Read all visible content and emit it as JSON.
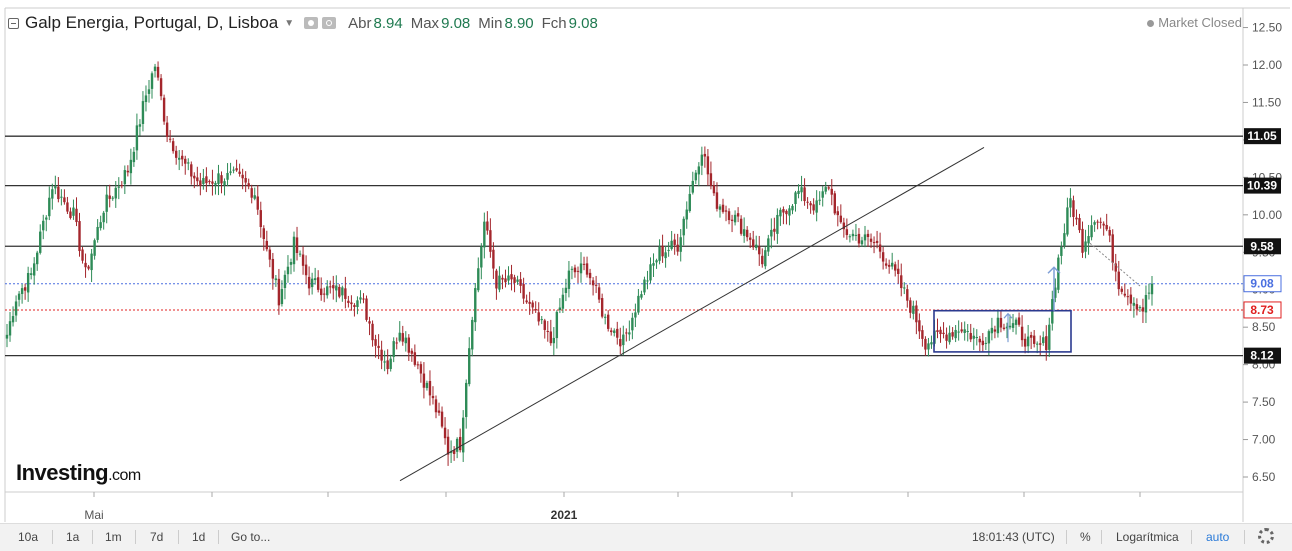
{
  "header": {
    "title": "Galp Energia, Portugal, D, Lisboa",
    "open_label": "Abr",
    "open_value": "8.94",
    "high_label": "Max",
    "high_value": "9.08",
    "low_label": "Min",
    "low_value": "8.90",
    "close_label": "Fch",
    "close_value": "9.08",
    "market_status": "Market Closed"
  },
  "logo": {
    "brand": "Investing",
    "suffix": ".com"
  },
  "toolbar": {
    "ranges": [
      "10a",
      "1a",
      "1m",
      "7d",
      "1d"
    ],
    "goto_label": "Go to...",
    "time": "18:01:43 (UTC)",
    "percent_label": "%",
    "log_label": "Logarítmica",
    "auto_label": "auto"
  },
  "colors": {
    "up": "#2e8b57",
    "down": "#a4262c",
    "current_price_line": "#4a6fe0",
    "ref_price_line": "#e02020",
    "level_line": "#333333",
    "box": "#2b3a8f",
    "arrow": "#7f9fd6"
  },
  "chart_data": {
    "type": "candlestick",
    "y_axis": {
      "min": 6.5,
      "max": 12.5,
      "ticks": [
        6.5,
        7.0,
        7.5,
        8.0,
        8.5,
        9.0,
        9.5,
        10.0,
        10.5,
        11.0,
        11.5,
        12.0,
        12.5
      ],
      "position": "right"
    },
    "x_axis": {
      "labels": [
        "Mai",
        "2021"
      ]
    },
    "horizontal_levels": [
      {
        "value": 11.05,
        "label": "11.05",
        "style": "solid"
      },
      {
        "value": 10.39,
        "label": "10.39",
        "style": "solid"
      },
      {
        "value": 9.58,
        "label": "9.58",
        "style": "solid"
      },
      {
        "value": 8.12,
        "label": "8.12",
        "style": "solid"
      }
    ],
    "price_lines": [
      {
        "value": 9.08,
        "label": "9.08",
        "kind": "current",
        "style": "dotted"
      },
      {
        "value": 8.73,
        "label": "8.73",
        "kind": "reference",
        "style": "dotted"
      }
    ],
    "trendline": {
      "from_index": 0,
      "to_index": 0,
      "from_value": 6.45,
      "to_value": 10.9
    },
    "rectangle": {
      "high": 8.72,
      "low": 8.17
    },
    "arrows": [
      {
        "from": 8.72,
        "to": 9.3
      }
    ],
    "anchors": [
      [
        0,
        8.4
      ],
      [
        3,
        8.9
      ],
      [
        8,
        9.2
      ],
      [
        15,
        10.4
      ],
      [
        22,
        10.0
      ],
      [
        26,
        9.2
      ],
      [
        32,
        10.1
      ],
      [
        40,
        10.6
      ],
      [
        46,
        11.6
      ],
      [
        49,
        12.0
      ],
      [
        53,
        11.1
      ],
      [
        58,
        10.7
      ],
      [
        64,
        10.4
      ],
      [
        70,
        10.5
      ],
      [
        76,
        10.5
      ],
      [
        82,
        10.3
      ],
      [
        86,
        9.5
      ],
      [
        90,
        8.9
      ],
      [
        95,
        9.6
      ],
      [
        100,
        9.1
      ],
      [
        106,
        9.0
      ],
      [
        112,
        8.95
      ],
      [
        118,
        8.8
      ],
      [
        122,
        8.3
      ],
      [
        126,
        8.0
      ],
      [
        130,
        8.5
      ],
      [
        136,
        8.0
      ],
      [
        142,
        7.4
      ],
      [
        146,
        6.85
      ],
      [
        150,
        6.95
      ],
      [
        154,
        8.7
      ],
      [
        158,
        9.9
      ],
      [
        162,
        9.1
      ],
      [
        168,
        9.1
      ],
      [
        174,
        8.7
      ],
      [
        180,
        8.3
      ],
      [
        186,
        9.2
      ],
      [
        192,
        9.3
      ],
      [
        198,
        8.6
      ],
      [
        204,
        8.3
      ],
      [
        210,
        9.0
      ],
      [
        216,
        9.5
      ],
      [
        222,
        9.6
      ],
      [
        226,
        10.3
      ],
      [
        230,
        10.9
      ],
      [
        234,
        10.2
      ],
      [
        240,
        10.0
      ],
      [
        246,
        9.7
      ],
      [
        250,
        9.4
      ],
      [
        256,
        10.0
      ],
      [
        262,
        10.3
      ],
      [
        268,
        10.1
      ],
      [
        272,
        10.4
      ],
      [
        276,
        9.8
      ],
      [
        282,
        9.7
      ],
      [
        288,
        9.6
      ],
      [
        294,
        9.2
      ],
      [
        300,
        8.7
      ],
      [
        304,
        8.3
      ],
      [
        310,
        8.4
      ],
      [
        316,
        8.5
      ],
      [
        322,
        8.3
      ],
      [
        328,
        8.6
      ],
      [
        334,
        8.5
      ],
      [
        340,
        8.2
      ],
      [
        344,
        8.3
      ],
      [
        348,
        9.4
      ],
      [
        352,
        10.2
      ],
      [
        356,
        9.6
      ],
      [
        360,
        10.0
      ],
      [
        364,
        9.8
      ],
      [
        368,
        9.1
      ],
      [
        372,
        8.9
      ],
      [
        376,
        8.75
      ],
      [
        379,
        9.08
      ]
    ]
  }
}
